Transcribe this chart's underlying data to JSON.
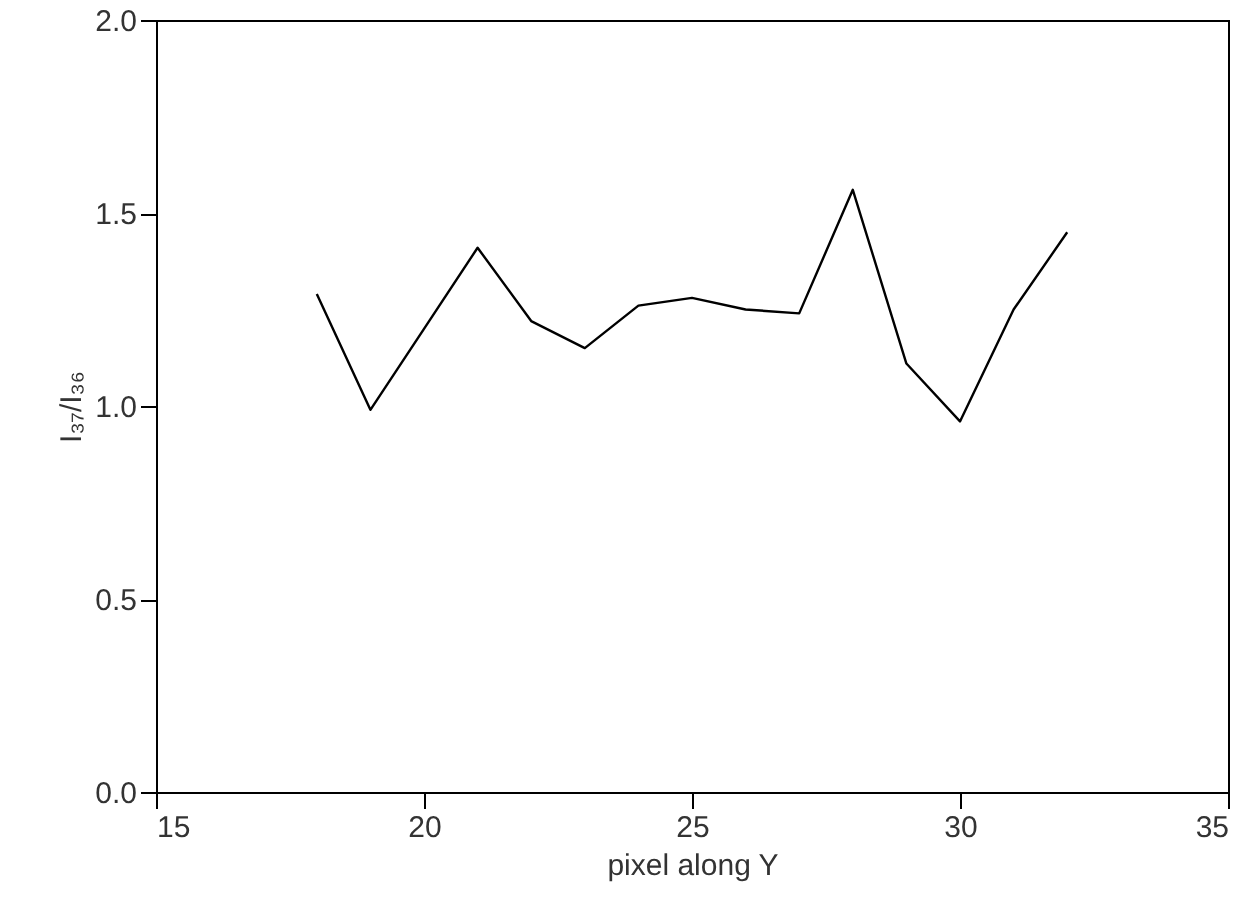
{
  "chart_data": {
    "type": "line",
    "xlabel": "pixel along Y",
    "ylabel": "I₃₇/I₃₆",
    "x": [
      18,
      19,
      20,
      21,
      22,
      23,
      24,
      25,
      26,
      27,
      28,
      29,
      30,
      31,
      32
    ],
    "series": [
      {
        "color": "#000000",
        "values": [
          1.29,
          0.99,
          1.2,
          1.41,
          1.22,
          1.15,
          1.26,
          1.28,
          1.25,
          1.24,
          1.56,
          1.11,
          0.96,
          1.25,
          1.45
        ]
      }
    ],
    "xlim": [
      15,
      35
    ],
    "xticks": [
      15,
      20,
      25,
      30,
      35
    ],
    "ylim": [
      0,
      2
    ],
    "yticks": [
      {
        "value": 0,
        "label": "0.0"
      },
      0.5,
      {
        "value": 1,
        "label": "1.0"
      },
      1.5,
      {
        "value": 2,
        "label": "2.0"
      }
    ],
    "grid": false,
    "marker": "none",
    "line_style": "solid"
  }
}
